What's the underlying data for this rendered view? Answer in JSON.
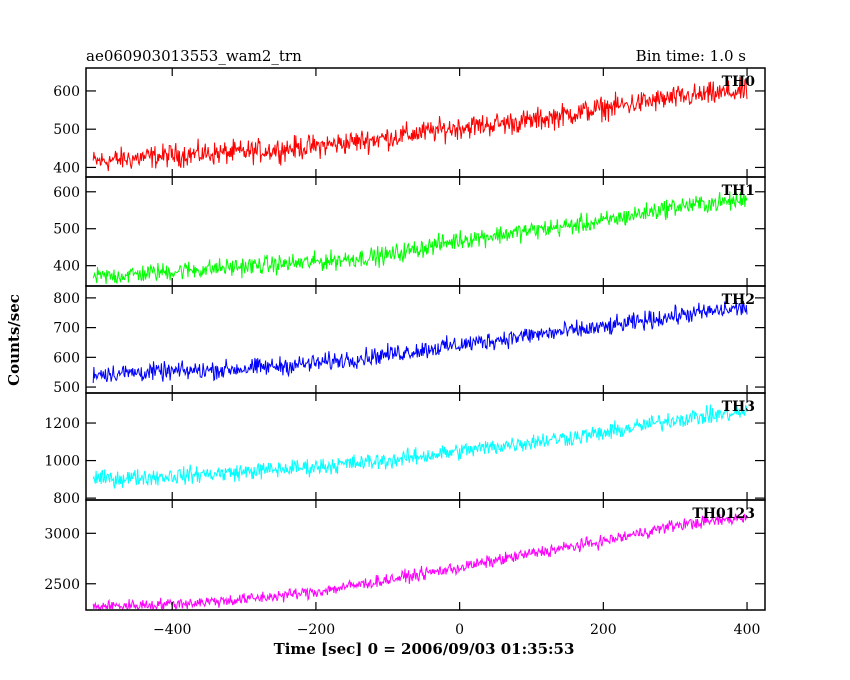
{
  "chart_data": {
    "type": "line",
    "title": "ae060903013553_wam2_trn",
    "subtitle": "Bin time: 1.0 s",
    "xlabel": "Time [sec] 0 = 2006/09/03 01:35:53",
    "ylabel": "Counts/sec",
    "xlim": [
      -520,
      425
    ],
    "x_ticks": [
      -400,
      -200,
      0,
      200,
      400
    ],
    "x_tick_labels": [
      "−400",
      "−200",
      "0",
      "200",
      "400"
    ],
    "x_range": [
      -510,
      400
    ],
    "grid": false,
    "panels": [
      {
        "name": "TH0",
        "color": "#ff0000",
        "ylim": [
          375,
          660
        ],
        "y_ticks": [
          400,
          500,
          600
        ],
        "x": [
          -510,
          -400,
          -300,
          -200,
          -100,
          0,
          100,
          200,
          300,
          400
        ],
        "values": [
          415,
          432,
          440,
          455,
          478,
          505,
          522,
          555,
          582,
          600
        ],
        "noise_amplitude": 30
      },
      {
        "name": "TH1",
        "color": "#00ff00",
        "ylim": [
          345,
          640
        ],
        "y_ticks": [
          400,
          500,
          600
        ],
        "x": [
          -510,
          -400,
          -300,
          -200,
          -100,
          0,
          100,
          200,
          300,
          400
        ],
        "values": [
          368,
          385,
          398,
          410,
          428,
          470,
          495,
          520,
          560,
          578
        ],
        "noise_amplitude": 25
      },
      {
        "name": "TH2",
        "color": "#0000ff",
        "ylim": [
          480,
          840
        ],
        "y_ticks": [
          500,
          600,
          700,
          800
        ],
        "x": [
          -510,
          -400,
          -300,
          -200,
          -100,
          0,
          100,
          200,
          300,
          400
        ],
        "values": [
          545,
          552,
          562,
          580,
          610,
          642,
          675,
          700,
          740,
          768
        ],
        "noise_amplitude": 30
      },
      {
        "name": "TH3",
        "color": "#00ffff",
        "ylim": [
          790,
          1360
        ],
        "y_ticks": [
          800,
          1000,
          1200
        ],
        "x": [
          -510,
          -400,
          -300,
          -200,
          -100,
          0,
          100,
          200,
          300,
          400
        ],
        "values": [
          900,
          918,
          940,
          968,
          1000,
          1050,
          1100,
          1145,
          1220,
          1260
        ],
        "noise_amplitude": 45
      },
      {
        "name": "TH0123",
        "color": "#ff00ff",
        "ylim": [
          2240,
          3330
        ],
        "y_ticks": [
          2500,
          3000
        ],
        "x": [
          -510,
          -400,
          -300,
          -200,
          -100,
          0,
          100,
          200,
          300,
          400
        ],
        "values": [
          2270,
          2300,
          2345,
          2420,
          2540,
          2660,
          2800,
          2920,
          3080,
          3160
        ],
        "noise_amplitude": 60
      }
    ]
  }
}
